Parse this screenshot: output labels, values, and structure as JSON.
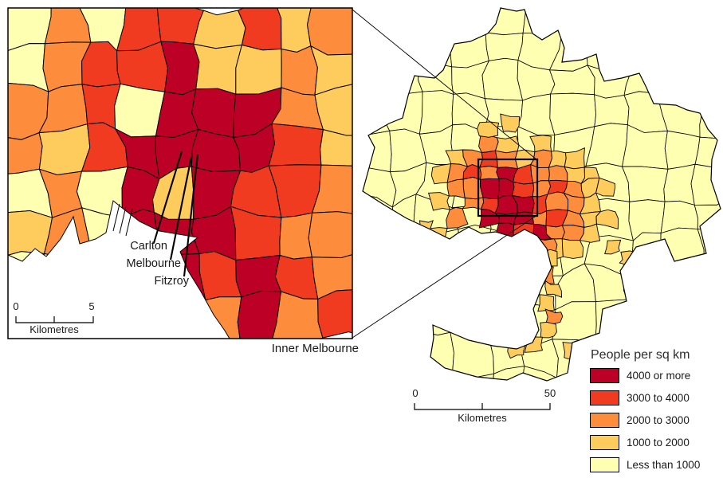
{
  "legend": {
    "title": "People per sq km",
    "items": [
      {
        "label": "4000 or more",
        "color": "#BD0026"
      },
      {
        "label": "3000 to 4000",
        "color": "#F03B20"
      },
      {
        "label": "2000 to 3000",
        "color": "#FD8D3C"
      },
      {
        "label": "1000 to 2000",
        "color": "#FECC5C"
      },
      {
        "label": "Less than 1000",
        "color": "#FFFFB2"
      }
    ]
  },
  "inset": {
    "title": "Inner Melbourne",
    "place_labels": [
      "Carlton",
      "Melbourne",
      "Fitzroy"
    ],
    "scalebar": {
      "start": "0",
      "end": "5",
      "unit": "Kilometres"
    },
    "density_grid": [
      "020331312",
      "023341121",
      "223044421",
      "213444431",
      "020414332",
      "120444322",
      "002443432",
      "000242423"
    ]
  },
  "main_map": {
    "scalebar": {
      "start": "0",
      "end": "50",
      "unit": "Kilometres"
    },
    "density_grid": [
      "....21.1.....",
      "..12321211...",
      ".1232432211..",
      "..2244323211.",
      ".1.23443221..",
      "..2.44423211.",
      ".1...434221..",
      ".....23211..."
    ],
    "extra_cells": [
      [
        524,
        278,
        "1"
      ],
      [
        532,
        326,
        "2"
      ],
      [
        554,
        348,
        "2"
      ],
      [
        676,
        300,
        "2"
      ],
      [
        682,
        318,
        "1"
      ],
      [
        676,
        336,
        "2"
      ],
      [
        684,
        354,
        "1"
      ],
      [
        676,
        372,
        "1"
      ],
      [
        684,
        390,
        "2"
      ],
      [
        678,
        406,
        "1"
      ],
      [
        660,
        424,
        "1"
      ],
      [
        640,
        430,
        "1"
      ],
      [
        630,
        146,
        "1"
      ],
      [
        604,
        154,
        "1"
      ],
      [
        760,
        300,
        "1"
      ],
      [
        776,
        316,
        "1"
      ],
      [
        706,
        432,
        "1"
      ],
      [
        716,
        450,
        "1"
      ]
    ]
  },
  "palette": {
    "0": "#FFFFB2",
    "1": "#FECC5C",
    "2": "#FD8D3C",
    "3": "#F03B20",
    "4": "#BD0026"
  },
  "colors": {
    "water": "#FFFFFF",
    "border": "#000000",
    "text": "#1A1A1A"
  }
}
